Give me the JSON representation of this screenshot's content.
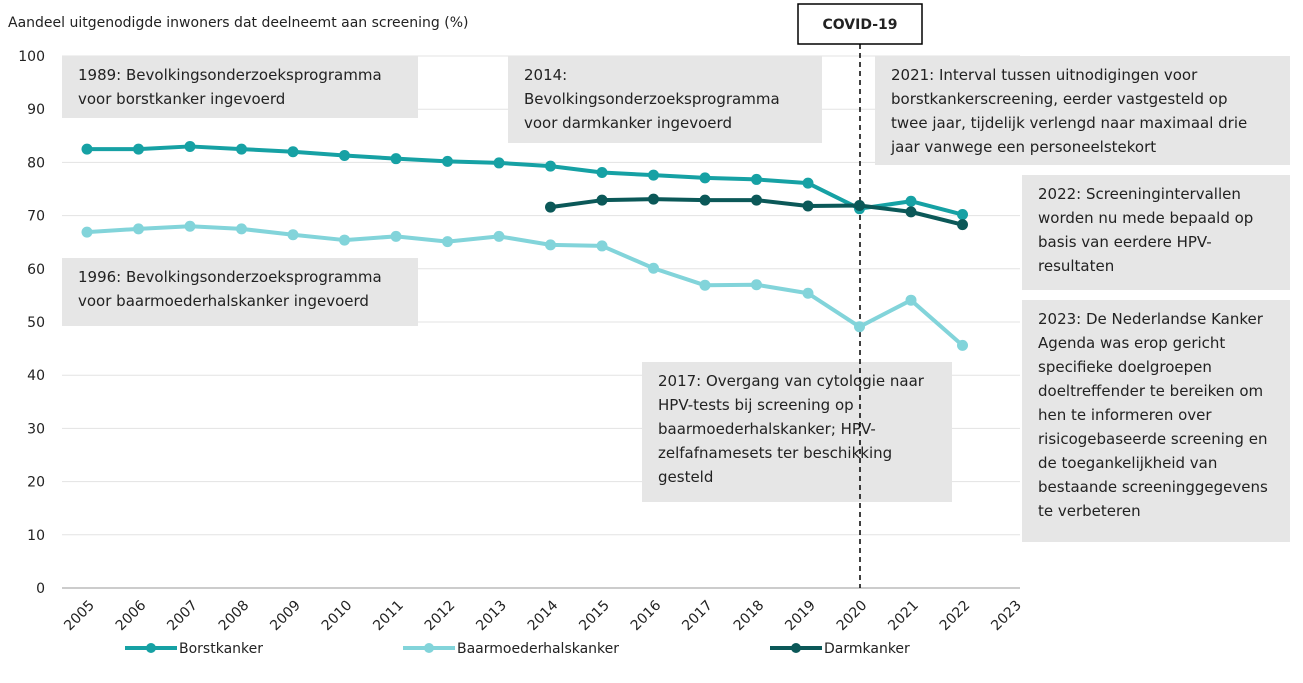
{
  "chart_data": {
    "type": "line",
    "ylabel": "Aandeel uitgenodigde inwoners dat deelneemt aan screening (%)",
    "categories": [
      "2005",
      "2006",
      "2007",
      "2008",
      "2009",
      "2010",
      "2011",
      "2012",
      "2013",
      "2014",
      "2015",
      "2016",
      "2017",
      "2018",
      "2019",
      "2020",
      "2021",
      "2022",
      "2023"
    ],
    "series": [
      {
        "name": "Borstkanker",
        "color": "#16a1a4",
        "values": [
          82.5,
          82.5,
          83.0,
          82.5,
          82.0,
          81.3,
          80.7,
          80.2,
          79.9,
          79.3,
          78.1,
          77.6,
          77.1,
          76.8,
          76.1,
          71.3,
          72.7,
          70.2,
          null
        ]
      },
      {
        "name": "Baarmoederhalskanker",
        "color": "#82d4da",
        "values": [
          66.9,
          67.5,
          68.0,
          67.5,
          66.4,
          65.4,
          66.1,
          65.1,
          66.1,
          64.5,
          64.3,
          60.1,
          56.9,
          57.0,
          55.4,
          49.1,
          54.1,
          45.6,
          null
        ]
      },
      {
        "name": "Darmkanker",
        "color": "#0b5858",
        "values": [
          null,
          null,
          null,
          null,
          null,
          null,
          null,
          null,
          null,
          71.6,
          72.9,
          73.1,
          72.9,
          72.9,
          71.8,
          71.9,
          70.7,
          68.3,
          null
        ]
      }
    ],
    "ylim": [
      0,
      100
    ],
    "yticks": [
      0,
      10,
      20,
      30,
      40,
      50,
      60,
      70,
      80,
      90,
      100
    ],
    "grid": true,
    "covid_label": "COVID-19",
    "annotations": [
      {
        "lines": [
          "1989: Bevolkingsonderzoeksprogramma",
          "voor borstkanker ingevoerd"
        ]
      },
      {
        "lines": [
          "2014:",
          "Bevolkingsonderzoeksprogramma",
          "voor darmkanker ingevoerd"
        ]
      },
      {
        "lines": [
          "2021: Interval tussen uitnodigingen voor",
          "borstkankerscreening, eerder vastgesteld op",
          "twee jaar, tijdelijk verlengd naar maximaal drie",
          "jaar vanwege een personeelstekort"
        ]
      },
      {
        "lines": [
          "2022: Screeningintervallen",
          "worden nu mede bepaald op",
          "basis van eerdere HPV-",
          "resultaten"
        ]
      },
      {
        "lines": [
          "1996: Bevolkingsonderzoeksprogramma",
          "voor baarmoederhalskanker ingevoerd"
        ]
      },
      {
        "lines": [
          "2023: De Nederlandse Kanker",
          "Agenda was erop gericht",
          "specifieke doelgroepen",
          "doeltreffender te bereiken om",
          "hen te informeren over",
          "risicogebaseerde screening en",
          "de toegankelijkheid van",
          "bestaande screeninggegevens",
          "te verbeteren"
        ]
      },
      {
        "lines": [
          "2017: Overgang van cytologie naar",
          "HPV-tests bij screening op",
          "baarmoederhalskanker; HPV-",
          "zelfafnamesets ter beschikking",
          "gesteld"
        ]
      }
    ]
  }
}
